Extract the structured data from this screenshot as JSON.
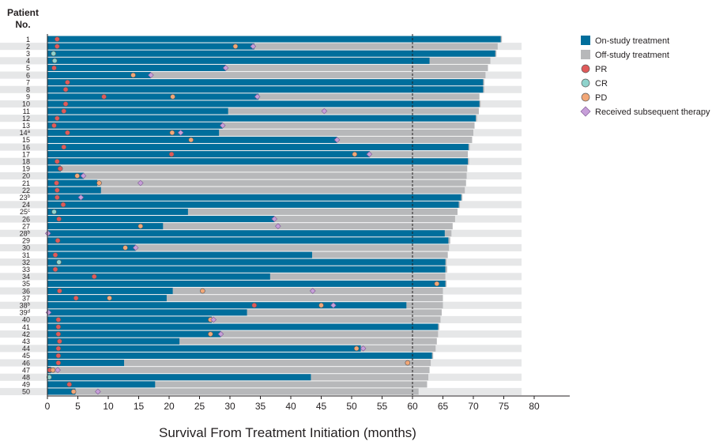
{
  "chart_data": {
    "type": "swimmer",
    "y_title_line1": "Patient",
    "y_title_line2": "No.",
    "xlabel": "Survival From Treatment Initiation (months)",
    "xlim": [
      0,
      85
    ],
    "x_ticks": [
      0,
      5,
      10,
      15,
      20,
      25,
      30,
      35,
      40,
      45,
      50,
      55,
      60,
      65,
      70,
      75,
      80
    ],
    "reference_line_x": 60,
    "colors": {
      "on": "#006e9c",
      "off": "#b7b8ba",
      "band": "#e6e7e8",
      "pr": "#e05a5a",
      "cr": "#8fd3cc",
      "pd": "#f2a777",
      "subsequent": "#c79fd9"
    },
    "legend": [
      {
        "key": "on",
        "label": "On-study treatment",
        "shape": "square"
      },
      {
        "key": "off",
        "label": "Off-study treatment",
        "shape": "square"
      },
      {
        "key": "pr",
        "label": "PR",
        "shape": "circle"
      },
      {
        "key": "cr",
        "label": "CR",
        "shape": "circle"
      },
      {
        "key": "pd",
        "label": "PD",
        "shape": "circle"
      },
      {
        "key": "subsequent",
        "label": "Received subsequent therapy",
        "shape": "diamond"
      }
    ],
    "patients": [
      {
        "id": "1",
        "sup": "",
        "on": 74.5,
        "total": 74.7,
        "response": {
          "type": "pr",
          "x": 1.6
        }
      },
      {
        "id": "2",
        "sup": "",
        "on": 34,
        "total": 74,
        "response": {
          "type": "pr",
          "x": 1.6
        },
        "pd": 30.9,
        "subsequent": 33.8
      },
      {
        "id": "3",
        "sup": "",
        "on": 73.6,
        "total": 73.8,
        "response": {
          "type": "cr",
          "x": 1.0
        }
      },
      {
        "id": "4",
        "sup": "",
        "on": 62.8,
        "total": 72.8,
        "response": {
          "type": "cr",
          "x": 1.2
        }
      },
      {
        "id": "5",
        "sup": "",
        "on": 29.3,
        "total": 72.4,
        "response": {
          "type": "pr",
          "x": 1.1
        },
        "subsequent": 29.3
      },
      {
        "id": "6",
        "sup": "",
        "on": 17.0,
        "total": 72.0,
        "pd": 14.1,
        "subsequent": 17.0
      },
      {
        "id": "7",
        "sup": "",
        "on": 71.6,
        "total": 71.8,
        "response": {
          "type": "pr",
          "x": 3.3
        }
      },
      {
        "id": "8",
        "sup": "",
        "on": 71.6,
        "total": 71.8,
        "response": {
          "type": "pr",
          "x": 3.0
        }
      },
      {
        "id": "9",
        "sup": "",
        "on": 34.7,
        "total": 71.0,
        "response": {
          "type": "pr",
          "x": 9.3
        },
        "pd": 20.6,
        "subsequent": 34.5
      },
      {
        "id": "10",
        "sup": "",
        "on": 71.0,
        "total": 71.2,
        "response": {
          "type": "pr",
          "x": 3.0
        }
      },
      {
        "id": "11",
        "sup": "",
        "on": 29.7,
        "total": 70.9,
        "response": {
          "type": "pr",
          "x": 2.7
        },
        "subsequent": 45.5
      },
      {
        "id": "12",
        "sup": "",
        "on": 70.4,
        "total": 70.6,
        "response": {
          "type": "pr",
          "x": 1.6
        }
      },
      {
        "id": "13",
        "sup": "",
        "on": 28.8,
        "total": 70.2,
        "response": {
          "type": "pr",
          "x": 1.1
        },
        "subsequent": 28.8
      },
      {
        "id": "14",
        "sup": "a",
        "on": 28.2,
        "total": 70.0,
        "response": {
          "type": "pr",
          "x": 3.3
        },
        "pd": 20.5,
        "subsequent": 21.9
      },
      {
        "id": "15",
        "sup": "",
        "on": 47.6,
        "total": 69.8,
        "pd": 23.6,
        "subsequent": 47.6
      },
      {
        "id": "16",
        "sup": "",
        "on": 69.2,
        "total": 69.4,
        "response": {
          "type": "pr",
          "x": 2.7
        }
      },
      {
        "id": "17",
        "sup": "",
        "on": 53.0,
        "total": 69.1,
        "response": {
          "type": "pr",
          "x": 20.4
        },
        "pd": 50.5,
        "subsequent": 52.9
      },
      {
        "id": "18",
        "sup": "",
        "on": 69.1,
        "total": 69.3,
        "response": {
          "type": "pr",
          "x": 1.6
        }
      },
      {
        "id": "19",
        "sup": "",
        "on": 2.2,
        "total": 69.0,
        "response": {
          "type": "pr",
          "x": 2.1
        }
      },
      {
        "id": "20",
        "sup": "",
        "on": 6.0,
        "total": 68.9,
        "pd": 4.9,
        "subsequent": 5.9
      },
      {
        "id": "21",
        "sup": "",
        "on": 8.2,
        "total": 68.8,
        "response": {
          "type": "pr",
          "x": 1.5
        },
        "pd": 8.5,
        "subsequent": 15.3
      },
      {
        "id": "22",
        "sup": "",
        "on": 8.8,
        "total": 68.6,
        "response": {
          "type": "pr",
          "x": 1.6
        }
      },
      {
        "id": "23",
        "sup": "b",
        "on": 68.0,
        "total": 68.2,
        "response": {
          "type": "pr",
          "x": 1.6
        },
        "subsequent": 5.5
      },
      {
        "id": "24",
        "sup": "",
        "on": 67.6,
        "total": 67.8,
        "response": {
          "type": "pr",
          "x": 2.6
        }
      },
      {
        "id": "25",
        "sup": "c",
        "on": 23.1,
        "total": 67.4,
        "response": {
          "type": "cr",
          "x": 1.1
        }
      },
      {
        "id": "26",
        "sup": "",
        "on": 37.3,
        "total": 67.0,
        "response": {
          "type": "pr",
          "x": 1.9
        },
        "subsequent": 37.3
      },
      {
        "id": "27",
        "sup": "",
        "on": 19.0,
        "total": 66.6,
        "pd": 15.3,
        "subsequent": 37.9
      },
      {
        "id": "28",
        "sup": "b",
        "on": 65.3,
        "total": 66.4,
        "subsequent": 0.1
      },
      {
        "id": "29",
        "sup": "",
        "on": 65.9,
        "total": 66.2,
        "response": {
          "type": "pr",
          "x": 1.7
        }
      },
      {
        "id": "30",
        "sup": "",
        "on": 14.5,
        "total": 66.0,
        "pd": 12.8,
        "subsequent": 14.5
      },
      {
        "id": "31",
        "sup": "",
        "on": 43.5,
        "total": 65.8,
        "response": {
          "type": "pr",
          "x": 1.3
        }
      },
      {
        "id": "32",
        "sup": "",
        "on": 65.4,
        "total": 65.6,
        "response": {
          "type": "cr",
          "x": 1.9
        }
      },
      {
        "id": "33",
        "sup": "",
        "on": 65.4,
        "total": 65.7,
        "response": {
          "type": "pr",
          "x": 1.3
        }
      },
      {
        "id": "34",
        "sup": "",
        "on": 36.6,
        "total": 65.4,
        "response": {
          "type": "pr",
          "x": 7.7
        }
      },
      {
        "id": "35",
        "sup": "",
        "on": 65.4,
        "total": 65.6,
        "pd": 64.0
      },
      {
        "id": "36",
        "sup": "",
        "on": 20.6,
        "total": 65.0,
        "response": {
          "type": "pr",
          "x": 2.0
        },
        "pd": 25.5,
        "subsequent": 43.6
      },
      {
        "id": "37",
        "sup": "",
        "on": 19.6,
        "total": 65.0,
        "response": {
          "type": "pr",
          "x": 4.7
        },
        "pd": 10.2
      },
      {
        "id": "38",
        "sup": "b",
        "on": 59.0,
        "total": 65.0,
        "response": {
          "type": "pr",
          "x": 34.0
        },
        "pd": 45.0,
        "subsequent": 47.0
      },
      {
        "id": "39",
        "sup": "d",
        "on": 32.8,
        "total": 64.8,
        "subsequent": 0.2
      },
      {
        "id": "40",
        "sup": "",
        "on": 27.0,
        "total": 64.6,
        "response": {
          "type": "pr",
          "x": 1.8
        },
        "pd": 26.8,
        "subsequent": 27.3
      },
      {
        "id": "41",
        "sup": "",
        "on": 64.2,
        "total": 64.4,
        "response": {
          "type": "pr",
          "x": 1.8
        }
      },
      {
        "id": "42",
        "sup": "",
        "on": 28.5,
        "total": 64.2,
        "response": {
          "type": "pr",
          "x": 1.8
        },
        "pd": 26.8,
        "subsequent": 28.5
      },
      {
        "id": "43",
        "sup": "",
        "on": 21.7,
        "total": 64.0,
        "response": {
          "type": "pr",
          "x": 2.0
        }
      },
      {
        "id": "44",
        "sup": "",
        "on": 51.5,
        "total": 63.8,
        "response": {
          "type": "pr",
          "x": 1.8
        },
        "pd": 50.8,
        "subsequent": 51.9
      },
      {
        "id": "45",
        "sup": "",
        "on": 63.2,
        "total": 63.4,
        "response": {
          "type": "pr",
          "x": 1.8
        }
      },
      {
        "id": "46",
        "sup": "",
        "on": 12.6,
        "total": 63.0,
        "response": {
          "type": "pr",
          "x": 1.8
        },
        "pd": 59.2
      },
      {
        "id": "47",
        "sup": "",
        "on": 0.6,
        "total": 62.8,
        "response": {
          "type": "pr",
          "x": 0.4
        },
        "pd": 0.9,
        "subsequent": 1.7
      },
      {
        "id": "48",
        "sup": "",
        "on": 43.3,
        "total": 62.6,
        "response": {
          "type": "cr",
          "x": 0.3
        }
      },
      {
        "id": "49",
        "sup": "",
        "on": 17.7,
        "total": 62.4,
        "response": {
          "type": "pr",
          "x": 3.6
        }
      },
      {
        "id": "50",
        "sup": "",
        "on": 4.6,
        "total": 61.0,
        "pd": 4.3,
        "subsequent": 8.3
      }
    ]
  }
}
